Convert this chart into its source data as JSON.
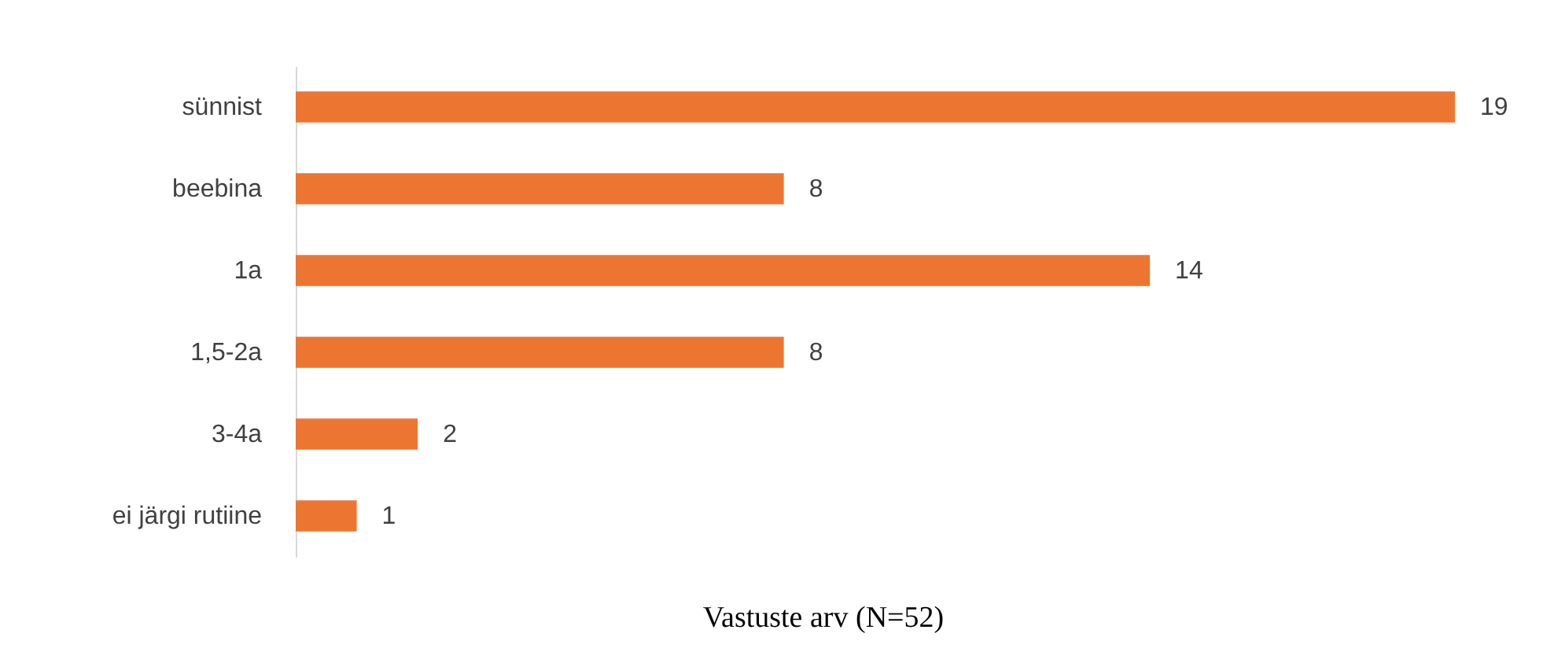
{
  "chart_data": {
    "type": "bar",
    "orientation": "horizontal",
    "xlabel": "Vastuste arv (N=52)",
    "categories": [
      "sünnist",
      "beebina",
      "1a",
      "1,5-2a",
      "3-4a",
      "ei järgi rutiine"
    ],
    "values": [
      19,
      8,
      14,
      8,
      2,
      1
    ],
    "color": "#ed7532",
    "data_labels": true,
    "grid": false
  }
}
